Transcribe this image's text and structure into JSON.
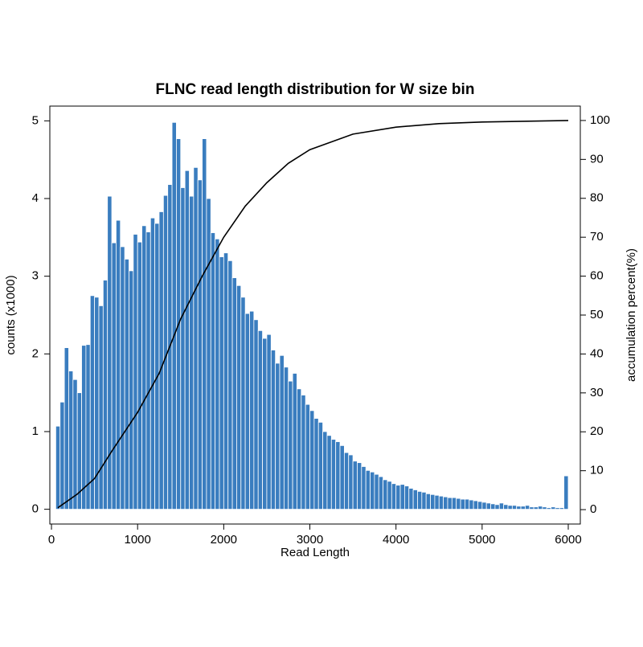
{
  "chart_data": {
    "type": "histogram",
    "title": "FLNC read length distribution for W size bin",
    "x_label": "Read Length",
    "y_label": "counts (x1000)",
    "y2_label": "accumulation percent(%)",
    "color": "#3a7dbf",
    "bins": [
      50,
      100,
      150,
      200,
      250,
      300,
      350,
      400,
      450,
      500,
      550,
      600,
      650,
      700,
      750,
      800,
      850,
      900,
      950,
      1000,
      1050,
      1100,
      1150,
      1200,
      1250,
      1300,
      1350,
      1400,
      1450,
      1500,
      1550,
      1600,
      1650,
      1700,
      1750,
      1800,
      1850,
      1900,
      1950,
      2000,
      2050,
      2100,
      2150,
      2200,
      2250,
      2300,
      2350,
      2400,
      2450,
      2500,
      2550,
      2600,
      2650,
      2700,
      2750,
      2800,
      2850,
      2900,
      2950,
      3000,
      3050,
      3100,
      3150,
      3200,
      3250,
      3300,
      3350,
      3400,
      3450,
      3500,
      3550,
      3600,
      3650,
      3700,
      3750,
      3800,
      3850,
      3900,
      3950,
      4000,
      4050,
      4100,
      4150,
      4200,
      4250,
      4300,
      4350,
      4400,
      4450,
      4500,
      4550,
      4600,
      4650,
      4700,
      4750,
      4800,
      4850,
      4900,
      4950,
      5000,
      5050,
      5100,
      5150,
      5200,
      5250,
      5300,
      5350,
      5400,
      5450,
      5500,
      5550,
      5600,
      5650,
      5700,
      5750,
      5800,
      5850,
      5900,
      5950,
      6000
    ],
    "counts": [
      1.07,
      1.38,
      2.08,
      1.78,
      1.67,
      1.5,
      2.11,
      2.12,
      2.75,
      2.73,
      2.62,
      2.95,
      4.03,
      3.43,
      3.72,
      3.38,
      3.22,
      3.07,
      3.54,
      3.44,
      3.65,
      3.57,
      3.75,
      3.68,
      3.83,
      4.04,
      4.18,
      4.98,
      4.77,
      4.14,
      4.36,
      4.03,
      4.4,
      4.24,
      4.77,
      4.0,
      3.56,
      3.48,
      3.25,
      3.3,
      3.2,
      2.98,
      2.88,
      2.73,
      2.52,
      2.55,
      2.44,
      2.3,
      2.2,
      2.25,
      2.05,
      1.88,
      1.98,
      1.83,
      1.65,
      1.75,
      1.55,
      1.47,
      1.35,
      1.27,
      1.17,
      1.12,
      1.0,
      0.95,
      0.9,
      0.87,
      0.82,
      0.73,
      0.7,
      0.62,
      0.6,
      0.55,
      0.5,
      0.48,
      0.45,
      0.42,
      0.38,
      0.36,
      0.33,
      0.31,
      0.32,
      0.3,
      0.27,
      0.25,
      0.23,
      0.22,
      0.2,
      0.19,
      0.18,
      0.17,
      0.16,
      0.15,
      0.15,
      0.14,
      0.13,
      0.13,
      0.12,
      0.11,
      0.1,
      0.09,
      0.08,
      0.07,
      0.06,
      0.08,
      0.06,
      0.05,
      0.05,
      0.04,
      0.04,
      0.05,
      0.03,
      0.03,
      0.04,
      0.03,
      0.02,
      0.03,
      0.02,
      0.02,
      0.43
    ],
    "series": [
      {
        "type": "line",
        "axis": "y2",
        "color": "#000000",
        "x": [
          75,
          300,
          500,
          700,
          1000,
          1250,
          1500,
          1750,
          2000,
          2250,
          2500,
          2750,
          3000,
          3500,
          4000,
          4500,
          5000,
          6000
        ],
        "values": [
          0.5,
          4,
          8,
          15,
          25,
          35,
          49,
          60,
          70,
          78,
          84,
          89,
          92.5,
          96.5,
          98.3,
          99.2,
          99.6,
          100
        ]
      }
    ],
    "xlim": [
      -19,
      6140
    ],
    "xticks": [
      0,
      1000,
      2000,
      3000,
      4000,
      5000,
      6000
    ],
    "ylim": [
      -0.19,
      5.19
    ],
    "yticks": [
      0,
      1,
      2,
      3,
      4,
      5
    ],
    "y2lim": [
      -3.7,
      103.7
    ],
    "y2ticks": [
      0,
      10,
      20,
      30,
      40,
      50,
      60,
      70,
      80,
      90,
      100
    ],
    "grid": false
  }
}
